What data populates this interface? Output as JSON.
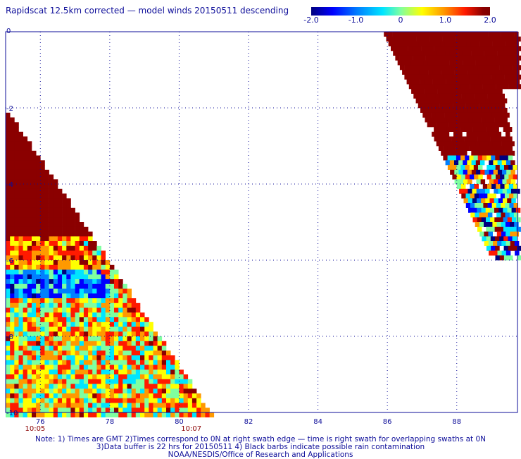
{
  "title": "Rapidscat 12.5km corrected — model winds 20150511 descending",
  "colorbar": {
    "tick_labels": [
      "-2.0",
      "-1.0",
      "0",
      "1.0",
      "2.0"
    ],
    "tick_values": [
      -2.0,
      -1.0,
      0,
      1.0,
      2.0
    ],
    "range": [
      -2.0,
      2.0
    ],
    "colors": [
      "#00007f",
      "#0000ff",
      "#0080ff",
      "#00e5ff",
      "#7fffa0",
      "#ffff00",
      "#ff9900",
      "#ff1a00",
      "#8b0000"
    ]
  },
  "axes": {
    "x_tick_labels": [
      "76",
      "78",
      "80",
      "82",
      "84",
      "86",
      "88"
    ],
    "x_ticks": [
      76,
      78,
      80,
      82,
      84,
      86,
      88
    ],
    "y_tick_labels": [
      "0",
      "-2",
      "-4",
      "-6",
      "-8",
      "-10"
    ],
    "y_ticks": [
      0,
      -2,
      -4,
      -6,
      -8,
      -10
    ],
    "lon_range": [
      75.0,
      89.75
    ],
    "lat_range": [
      -10,
      0
    ],
    "grid": "dotted",
    "time_labels": [
      "10:05",
      "10:07"
    ],
    "time_label_lons": [
      75.85,
      80.35
    ]
  },
  "swaths": [
    {
      "name": "west",
      "lon_min": 75.0,
      "lon_max": 80.9,
      "lat_min": -10.0,
      "lat_max": -2.0
    },
    {
      "name": "east",
      "lon_min": 85.9,
      "lon_max": 89.75,
      "lat_min": -5.9,
      "lat_max": 0.0
    }
  ],
  "notes": [
    "Note: 1) Times are GMT 2)Times correspond to 0N at right swath edge — time is right swath for overlapping swaths at 0N",
    "3)Data buffer is 22 hrs for 20150511 4) Black barbs indicate possible rain contamination",
    "NOAA/NESDIS/Office of Research and Applications"
  ]
}
